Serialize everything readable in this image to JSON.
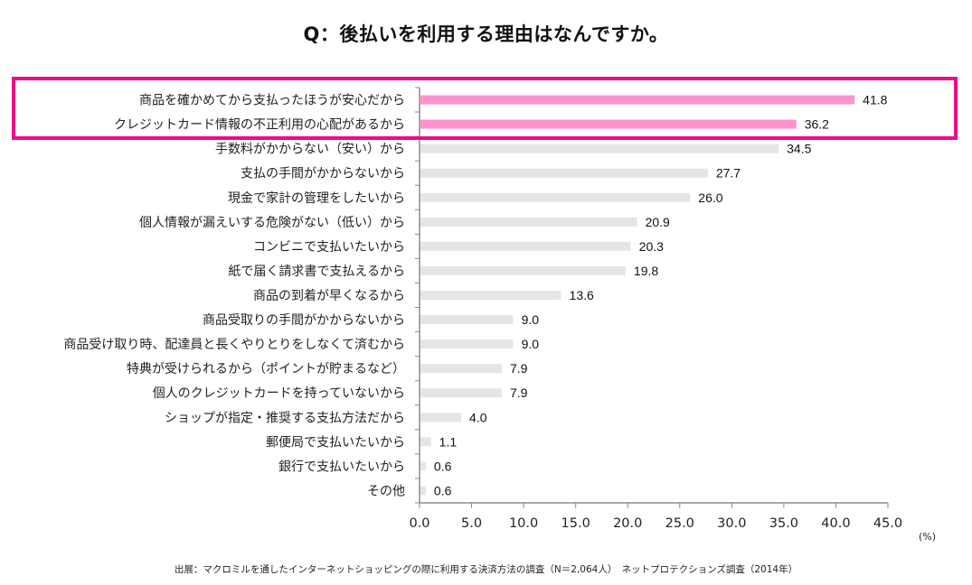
{
  "chart_data": {
    "type": "bar",
    "orientation": "horizontal",
    "title": "Q：後払いを利用する理由はなんですか。",
    "xlabel": "",
    "ylabel": "",
    "unit": "(%)",
    "xlim": [
      0,
      45
    ],
    "xticks": [
      "0.0",
      "5.0",
      "10.0",
      "15.0",
      "20.0",
      "25.0",
      "30.0",
      "35.0",
      "40.0",
      "45.0"
    ],
    "xtick_values": [
      0,
      5,
      10,
      15,
      20,
      25,
      30,
      35,
      40,
      45
    ],
    "grid": false,
    "legend": "none",
    "categories": [
      "商品を確かめてから支払ったほうが安心だから",
      "クレジットカード情報の不正利用の心配があるから",
      "手数料がかからない（安い）から",
      "支払の手間がかからないから",
      "現金で家計の管理をしたいから",
      "個人情報が漏えいする危険がない（低い）から",
      "コンビニで支払いたいから",
      "紙で届く請求書で支払えるから",
      "商品の到着が早くなるから",
      "商品受取りの手間がかからないから",
      "商品受け取り時、配達員と長くやりとりをしなくて済むから",
      "特典が受けられるから（ポイントが貯まるなど）",
      "個人のクレジットカードを持っていないから",
      "ショップが指定・推奨する支払方法だから",
      "郵便局で支払いたいから",
      "銀行で支払いたいから",
      "その他"
    ],
    "values": [
      41.8,
      36.2,
      34.5,
      27.7,
      26.0,
      20.9,
      20.3,
      19.8,
      13.6,
      9.0,
      9.0,
      7.9,
      7.9,
      4.0,
      1.1,
      0.6,
      0.6
    ],
    "value_labels": [
      "41.8",
      "36.2",
      "34.5",
      "27.7",
      "26.0",
      "20.9",
      "20.3",
      "19.8",
      "13.6",
      "9.0",
      "9.0",
      "7.9",
      "7.9",
      "4.0",
      "1.1",
      "0.6",
      "0.6"
    ],
    "highlighted": [
      true,
      true,
      false,
      false,
      false,
      false,
      false,
      false,
      false,
      false,
      false,
      false,
      false,
      false,
      false,
      false,
      false
    ],
    "annotations": [
      "Top 2 reasons highlighted with magenta box"
    ],
    "source": "出展：マクロミルを通したインターネットショッピングの際に利用する決済方法の調査（N＝2,064人）　ネットプロテクションズ調査（2014年）"
  },
  "colors": {
    "highlight_bar": "#FF92CC",
    "normal_bar": "#E5E5E5",
    "highlight_box": "#EE0A8C",
    "axis": "#8C8C8C"
  }
}
